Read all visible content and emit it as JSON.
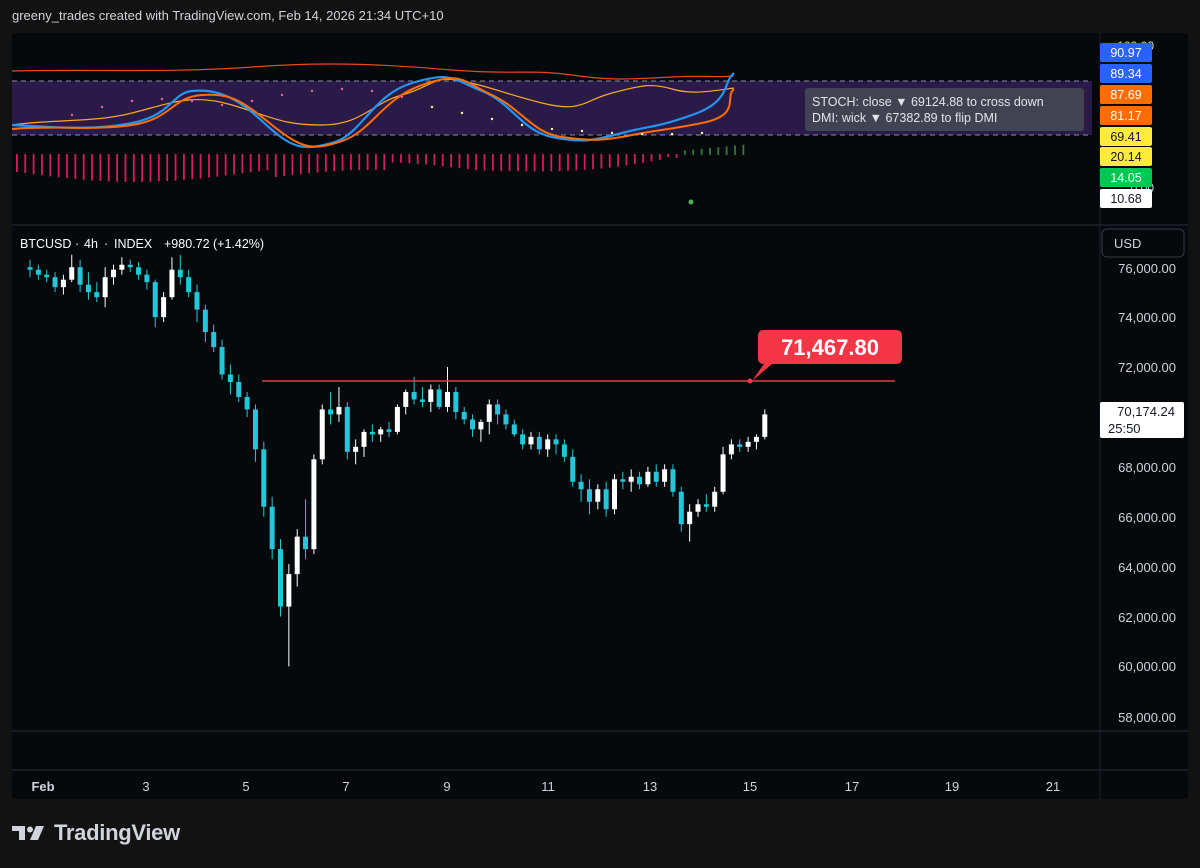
{
  "header": {
    "attribution": "greeny_trades created with TradingView.com, Feb 14, 2026 21:34 UTC+10"
  },
  "symbol": {
    "name": "BTCUSD",
    "interval": "4h",
    "source": "INDEX",
    "change": "+980.72 (+1.42%)"
  },
  "currency_button": {
    "label": "USD"
  },
  "alert_tooltip": {
    "line1": "STOCH: close ▼ 69124.88 to cross down",
    "line2": "DMI: wick ▼ 67382.89 to flip DMI"
  },
  "horizontal_line": {
    "label": "71,467.80",
    "price": 71467.8,
    "color": "#f23645"
  },
  "last_price": {
    "value": "70,174.24",
    "countdown": "25:50"
  },
  "price_axis": {
    "labels": [
      "76,000.00",
      "74,000.00",
      "72,000.00",
      "68,000.00",
      "66,000.00",
      "64,000.00",
      "62,000.00",
      "60,000.00",
      "58,000.00"
    ]
  },
  "indicator_axis": {
    "top_label": "100.00",
    "bottom_label": "0.00",
    "badges": [
      {
        "value": "90.97",
        "color": "#2962ff"
      },
      {
        "value": "89.34",
        "color": "#2962ff"
      },
      {
        "value": "87.69",
        "color": "#ff6d00"
      },
      {
        "value": "81.17",
        "color": "#ff6d00"
      },
      {
        "value": "69.41",
        "color": "#ffeb3b"
      },
      {
        "value": "20.14",
        "color": "#ffeb3b"
      },
      {
        "value": "14.05",
        "color": "#00c853"
      },
      {
        "value": "10.68",
        "color": "#ffffff"
      }
    ]
  },
  "time_axis": {
    "labels": [
      "Feb",
      "3",
      "5",
      "7",
      "9",
      "11",
      "13",
      "15",
      "17",
      "19",
      "21"
    ]
  },
  "footer": {
    "brand": "TradingView"
  },
  "colors": {
    "up": "#ffffff",
    "down": "#26c6da",
    "background": "#05090b",
    "page": "#121212"
  },
  "chart_data": {
    "type": "candlestick",
    "timeframe": "4h",
    "ylim": [
      57000,
      77000
    ],
    "candles": [
      [
        76200,
        76500,
        75800,
        76100
      ],
      [
        76100,
        76300,
        75700,
        75900
      ],
      [
        75900,
        76100,
        75600,
        75800
      ],
      [
        75800,
        76000,
        75200,
        75400
      ],
      [
        75400,
        75900,
        75100,
        75700
      ],
      [
        75700,
        76700,
        75600,
        76200
      ],
      [
        76200,
        76500,
        75200,
        75500
      ],
      [
        75500,
        76000,
        74900,
        75200
      ],
      [
        75200,
        75600,
        74800,
        75000
      ],
      [
        75000,
        76200,
        74600,
        75800
      ],
      [
        75800,
        76300,
        75500,
        76100
      ],
      [
        76100,
        76600,
        75900,
        76300
      ],
      [
        76300,
        76500,
        76000,
        76200
      ],
      [
        76200,
        76400,
        75700,
        75900
      ],
      [
        75900,
        76100,
        75300,
        75600
      ],
      [
        75600,
        75700,
        73800,
        74200
      ],
      [
        74200,
        75200,
        74000,
        75000
      ],
      [
        75000,
        76600,
        74900,
        76100
      ],
      [
        76100,
        76700,
        75500,
        75800
      ],
      [
        75800,
        76100,
        75000,
        75200
      ],
      [
        75200,
        75500,
        74000,
        74500
      ],
      [
        74500,
        74700,
        73200,
        73600
      ],
      [
        73600,
        73900,
        72800,
        73000
      ],
      [
        73000,
        73300,
        71700,
        71900
      ],
      [
        71900,
        72300,
        71100,
        71600
      ],
      [
        71600,
        71900,
        70800,
        71000
      ],
      [
        71000,
        71200,
        70200,
        70500
      ],
      [
        70500,
        70700,
        68400,
        68900
      ],
      [
        68900,
        69200,
        66200,
        66600
      ],
      [
        66600,
        67000,
        64500,
        64900
      ],
      [
        64900,
        65300,
        62200,
        62600
      ],
      [
        62600,
        64300,
        60200,
        63900
      ],
      [
        63900,
        65700,
        63400,
        65400
      ],
      [
        65400,
        66900,
        64500,
        64900
      ],
      [
        64900,
        68700,
        64700,
        68500
      ],
      [
        68500,
        70700,
        68300,
        70500
      ],
      [
        70500,
        71200,
        69900,
        70300
      ],
      [
        70300,
        71400,
        70000,
        70600
      ],
      [
        70600,
        70800,
        68500,
        68800
      ],
      [
        68800,
        69300,
        68300,
        69000
      ],
      [
        69000,
        69700,
        68600,
        69600
      ],
      [
        69600,
        69900,
        69200,
        69500
      ],
      [
        69500,
        69800,
        69200,
        69700
      ],
      [
        69700,
        70000,
        69400,
        69600
      ],
      [
        69600,
        70700,
        69500,
        70600
      ],
      [
        70600,
        71300,
        70300,
        71200
      ],
      [
        71200,
        71800,
        70700,
        70900
      ],
      [
        70900,
        71400,
        70600,
        70800
      ],
      [
        70800,
        71500,
        70400,
        71300
      ],
      [
        71300,
        71500,
        70500,
        70600
      ],
      [
        70600,
        72200,
        70400,
        71200
      ],
      [
        71200,
        71400,
        70100,
        70400
      ],
      [
        70400,
        70600,
        69900,
        70100
      ],
      [
        70100,
        70300,
        69400,
        69700
      ],
      [
        69700,
        70100,
        69200,
        70000
      ],
      [
        70000,
        70900,
        69500,
        70700
      ],
      [
        70700,
        70900,
        69900,
        70300
      ],
      [
        70300,
        70500,
        69700,
        69900
      ],
      [
        69900,
        70100,
        69400,
        69500
      ],
      [
        69500,
        69700,
        68900,
        69100
      ],
      [
        69100,
        69600,
        68900,
        69400
      ],
      [
        69400,
        69600,
        68700,
        68900
      ],
      [
        68900,
        69500,
        68600,
        69300
      ],
      [
        69300,
        69500,
        68700,
        69100
      ],
      [
        69100,
        69300,
        68400,
        68600
      ],
      [
        68600,
        68900,
        67400,
        67600
      ],
      [
        67600,
        67900,
        66800,
        67300
      ],
      [
        67300,
        67700,
        66300,
        66800
      ],
      [
        66800,
        67500,
        66500,
        67300
      ],
      [
        67300,
        67600,
        66200,
        66500
      ],
      [
        66500,
        67900,
        66300,
        67700
      ],
      [
        67700,
        68000,
        67300,
        67600
      ],
      [
        67600,
        68100,
        67200,
        67800
      ],
      [
        67800,
        68000,
        67300,
        67500
      ],
      [
        67500,
        68200,
        67400,
        68000
      ],
      [
        68000,
        68300,
        67400,
        67600
      ],
      [
        67600,
        68300,
        67400,
        68100
      ],
      [
        68100,
        68300,
        67000,
        67200
      ],
      [
        67200,
        67400,
        65600,
        65900
      ],
      [
        65900,
        66700,
        65200,
        66400
      ],
      [
        66400,
        66900,
        66200,
        66700
      ],
      [
        66700,
        67100,
        66400,
        66600
      ],
      [
        66600,
        67400,
        66400,
        67200
      ],
      [
        67200,
        69000,
        67100,
        68700
      ],
      [
        68700,
        69300,
        68500,
        69100
      ],
      [
        69100,
        69300,
        68800,
        69000
      ],
      [
        69000,
        69400,
        68800,
        69200
      ],
      [
        69200,
        69500,
        68900,
        69400
      ],
      [
        69400,
        70500,
        69300,
        70300
      ]
    ]
  }
}
